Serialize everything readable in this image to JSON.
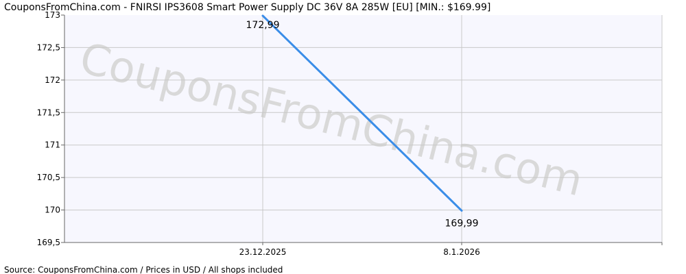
{
  "title": "CouponsFromChina.com - FNIRSI IPS3608 Smart Power Supply DC 36V 8A 285W [EU] [MIN.: $169.99]",
  "watermark": "CouponsFromChina.com",
  "footer": "Source:  CouponsFromChina.com / Prices in USD / All shops included",
  "colors": {
    "line": "#3a8de8",
    "grid": "#c8c8c8",
    "plot_bg": "#f7f7fe",
    "axis": "#666666"
  },
  "chart_data": {
    "type": "line",
    "title": "CouponsFromChina.com - FNIRSI IPS3608 Smart Power Supply DC 36V 8A 285W [EU] [MIN.: $169.99]",
    "xlabel": "",
    "ylabel": "",
    "categories": [
      "23.12.2025",
      "8.1.2026"
    ],
    "series": [
      {
        "values": [
          172.99,
          169.99
        ],
        "data_labels": [
          "172,99",
          "169,99"
        ]
      }
    ],
    "ylim": [
      169.5,
      173
    ],
    "yticks": [
      169.5,
      170,
      170.5,
      171,
      171.5,
      172,
      172.5,
      173
    ],
    "ytick_labels": [
      "169,5",
      "170",
      "170,5",
      "171",
      "171,5",
      "172",
      "172,5",
      "173"
    ],
    "grid": true,
    "legend": "none"
  }
}
